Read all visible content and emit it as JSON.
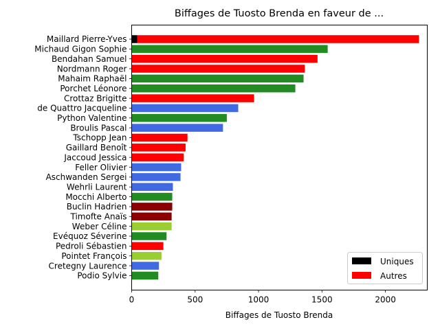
{
  "chart_data": {
    "type": "bar",
    "orientation": "horizontal",
    "stacked": true,
    "title": "Biffages de Tuosto Brenda en faveur de ...",
    "xlabel": "Biffages de Tuosto Brenda",
    "ylabel": "",
    "xlim": [
      0,
      2330
    ],
    "xticks": [
      0,
      500,
      1000,
      1500,
      2000
    ],
    "grid": false,
    "legend_position": "lower-right",
    "legend": [
      {
        "label": "Uniques",
        "color": "#000000"
      },
      {
        "label": "Autres",
        "color": "#ff0000"
      }
    ],
    "categories": [
      "Maillard Pierre-Yves",
      "Michaud Gigon Sophie",
      "Bendahan Samuel",
      "Nordmann Roger",
      "Mahaim Raphaël",
      "Porchet Léonore",
      "Crottaz Brigitte",
      "de Quattro Jacqueline",
      "Python Valentine",
      "Broulis Pascal",
      "Tschopp Jean",
      "Gaillard Benoît",
      "Jaccoud Jessica",
      "Feller Olivier",
      "Aschwanden Sergei",
      "Wehrli Laurent",
      "Mocchi Alberto",
      "Buclin Hadrien",
      "Timofte Anaïs",
      "Weber Céline",
      "Evéquoz Séverine",
      "Pedroli Sébastien",
      "Pointet François",
      "Cretegny Laurence",
      "Podio Sylvie"
    ],
    "uniques": [
      45,
      0,
      0,
      0,
      0,
      0,
      0,
      0,
      0,
      0,
      0,
      0,
      0,
      0,
      0,
      0,
      0,
      0,
      0,
      0,
      0,
      0,
      0,
      0,
      0
    ],
    "values": [
      2220,
      1545,
      1465,
      1365,
      1355,
      1290,
      965,
      840,
      750,
      720,
      440,
      425,
      410,
      390,
      385,
      325,
      320,
      320,
      315,
      315,
      275,
      250,
      235,
      215,
      210
    ],
    "colors": [
      "#ff0000",
      "#228b22",
      "#ff0000",
      "#ff0000",
      "#228b22",
      "#228b22",
      "#ff0000",
      "#4169e1",
      "#228b22",
      "#4169e1",
      "#ff0000",
      "#ff0000",
      "#ff0000",
      "#4169e1",
      "#4169e1",
      "#4169e1",
      "#228b22",
      "#8b0000",
      "#8b0000",
      "#9acd32",
      "#228b22",
      "#ff0000",
      "#9acd32",
      "#4169e1",
      "#228b22"
    ]
  }
}
